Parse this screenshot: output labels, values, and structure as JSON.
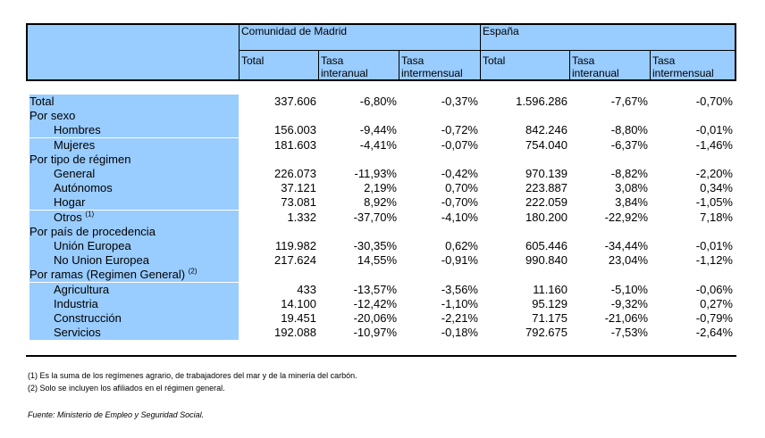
{
  "header": {
    "group_madrid": "Comunidad de Madrid",
    "group_spain": "España",
    "columns": [
      [
        "Total"
      ],
      [
        "Tasa",
        "interanual"
      ],
      [
        "Tasa",
        "intermensual"
      ],
      [
        "Total"
      ],
      [
        "Tasa",
        "interanual"
      ],
      [
        "Tasa",
        "intermensual"
      ]
    ]
  },
  "rows": [
    {
      "label": "Total",
      "indent": false,
      "values": [
        "337.606",
        "-6,80%",
        "-0,37%",
        "1.596.286",
        "-7,67%",
        "-0,70%"
      ]
    },
    {
      "label": "Por sexo",
      "indent": false,
      "values": []
    },
    {
      "label": "Hombres",
      "indent": true,
      "values": [
        "156.003",
        "-9,44%",
        "-0,72%",
        "842.246",
        "-8,80%",
        "-0,01%"
      ]
    },
    {
      "label": "Mujeres",
      "indent": true,
      "values": [
        "181.603",
        "-4,41%",
        "-0,07%",
        "754.040",
        "-6,37%",
        "-1,46%"
      ]
    },
    {
      "label": "Por tipo de régimen",
      "indent": false,
      "values": []
    },
    {
      "label": "General",
      "indent": true,
      "values": [
        "226.073",
        "-11,93%",
        "-0,42%",
        "970.139",
        "-8,82%",
        "-2,20%"
      ]
    },
    {
      "label": "Autónomos",
      "indent": true,
      "values": [
        "37.121",
        "2,19%",
        "0,70%",
        "223.887",
        "3,08%",
        "0,34%"
      ]
    },
    {
      "label": "Hogar",
      "indent": true,
      "values": [
        "73.081",
        "8,92%",
        "-0,70%",
        "222.059",
        "3,84%",
        "-1,05%"
      ]
    },
    {
      "label": "Otros",
      "sup": "(1)",
      "indent": true,
      "values": [
        "1.332",
        "-37,70%",
        "-4,10%",
        "180.200",
        "-22,92%",
        "7,18%"
      ]
    },
    {
      "label": "Por país de procedencia",
      "indent": false,
      "values": []
    },
    {
      "label": "Unión Europea",
      "indent": true,
      "values": [
        "119.982",
        "-30,35%",
        "0,62%",
        "605.446",
        "-34,44%",
        "-0,01%"
      ]
    },
    {
      "label": "No Union Europea",
      "indent": true,
      "values": [
        "217.624",
        "14,55%",
        "-0,91%",
        "990.840",
        "23,04%",
        "-1,12%"
      ]
    },
    {
      "label": "Por ramas (Regimen General)",
      "sup": "(2)",
      "indent": false,
      "values": []
    },
    {
      "label": "Agricultura",
      "indent": true,
      "values": [
        "433",
        "-13,57%",
        "-3,56%",
        "11.160",
        "-5,10%",
        "-0,06%"
      ]
    },
    {
      "label": "Industria",
      "indent": true,
      "values": [
        "14.100",
        "-12,42%",
        "-1,10%",
        "95.129",
        "-9,32%",
        "0,27%"
      ]
    },
    {
      "label": "Construcción",
      "indent": true,
      "values": [
        "19.451",
        "-20,06%",
        "-2,21%",
        "71.175",
        "-21,06%",
        "-0,79%"
      ]
    },
    {
      "label": "Servicios",
      "indent": true,
      "values": [
        "192.088",
        "-10,97%",
        "-0,18%",
        "792.675",
        "-7,53%",
        "-2,64%"
      ]
    }
  ],
  "notes": {
    "note1": "(1) Es la suma de los regímenes  agrario, de trabajadores del mar y de la minería del carbón.",
    "note2": "(2) Solo se incluyen los afiliados en el régimen general.",
    "source": "Fuente: Ministerio de Empleo y Seguridad Social."
  },
  "colors": {
    "header_fill": "#99ccff"
  }
}
